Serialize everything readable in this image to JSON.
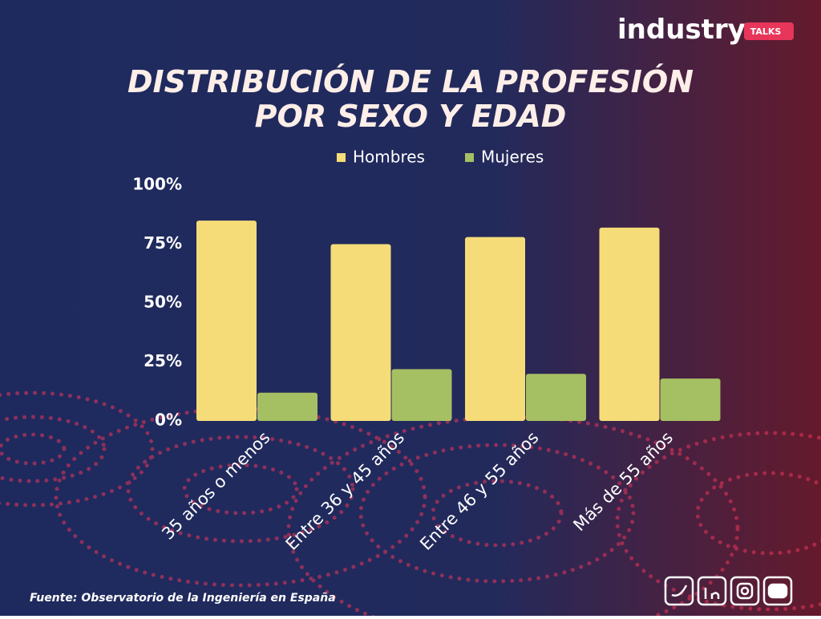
{
  "chart_data": {
    "type": "bar",
    "brand": {
      "name": "industry",
      "badge": "TALKS"
    },
    "title": [
      "DISTRIBUCIÓN DE LA PROFESIÓN",
      "POR SEXO Y EDAD"
    ],
    "categories": [
      "35 años o menos",
      "Entre 36 y 45 años",
      "Entre 46 y 55 años",
      "Más de 55 años"
    ],
    "series": [
      {
        "name": "Hombres",
        "color": "#f5dc78",
        "values": [
          85,
          75,
          78,
          82
        ]
      },
      {
        "name": "Mujeres",
        "color": "#a5bf63",
        "values": [
          12,
          22,
          20,
          18
        ]
      }
    ],
    "ylim": [
      0,
      100
    ],
    "yticks": [
      {
        "value": 0,
        "label": "0%"
      },
      {
        "value": 25,
        "label": "25%"
      },
      {
        "value": 50,
        "label": "50%"
      },
      {
        "value": 75,
        "label": "75%"
      },
      {
        "value": 100,
        "label": "100%"
      }
    ],
    "grid": false,
    "legend": "top",
    "source": "Fuente: Observatorio de la Ingeniería en España"
  }
}
